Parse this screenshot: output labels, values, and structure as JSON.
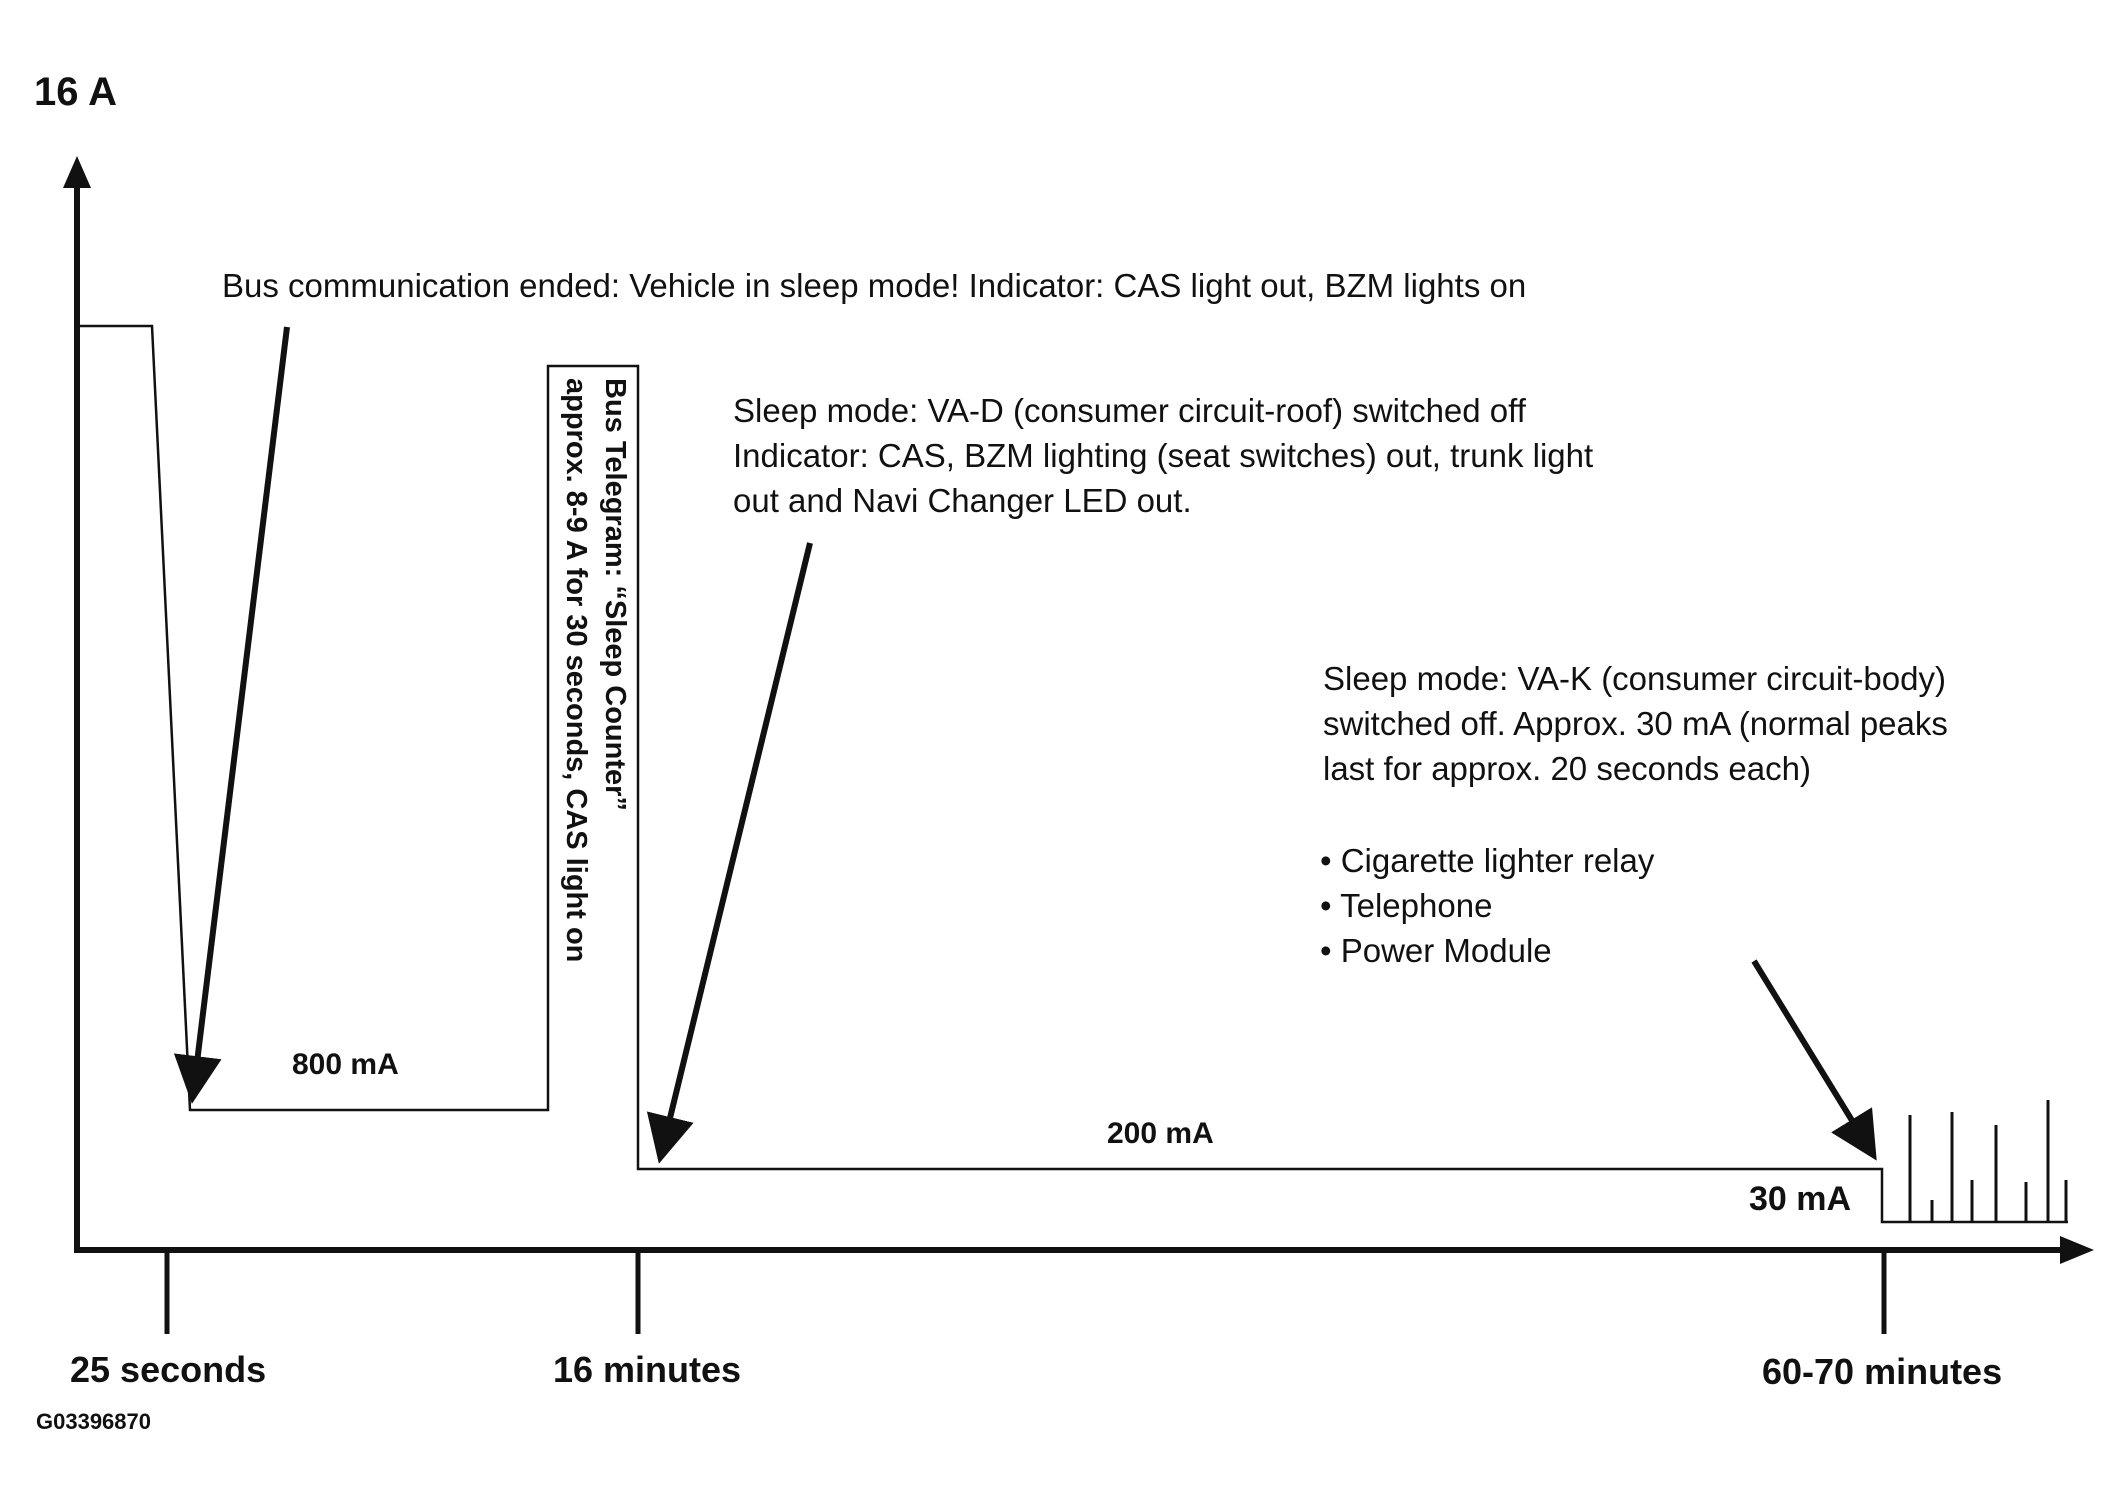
{
  "diagram": {
    "y_max_label": "16 A",
    "x_labels": {
      "t1": "25 seconds",
      "t2": "16 minutes",
      "t3": "60-70 minutes"
    },
    "image_code": "G03396870",
    "levels": {
      "l800": "800 mA",
      "l200": "200 mA",
      "l30": "30 mA"
    },
    "bus_telegram": {
      "line1": "Bus Telegram: “Sleep Counter”",
      "line2": "approx. 8-9 A for 30 seconds, CAS light on"
    },
    "annotations": {
      "bus_ended": "Bus communication ended: Vehicle in sleep mode!  Indicator: CAS light out, BZM lights on",
      "vad": [
        "Sleep mode: VA-D (consumer circuit-roof) switched off",
        "Indicator: CAS, BZM lighting (seat switches) out, trunk light",
        "out and Navi Changer LED out."
      ],
      "vak": [
        "Sleep mode: VA-K (consumer circuit-body)",
        "switched off.   Approx. 30 mA (normal peaks",
        "last for approx. 20 seconds each)"
      ],
      "bullets": [
        "• Cigarette lighter relay",
        "• Telephone",
        "• Power Module"
      ]
    }
  }
}
